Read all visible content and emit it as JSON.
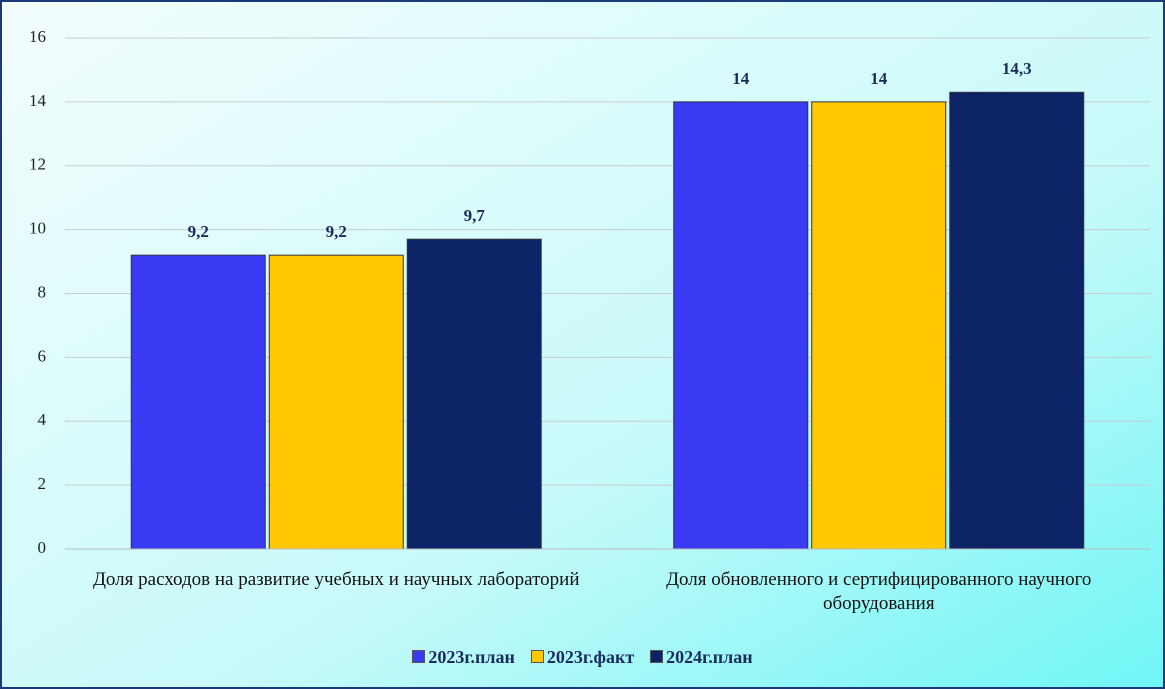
{
  "chart_data": {
    "type": "bar",
    "categories": [
      "Доля расходов на развитие учебных и научных лабораторий",
      "Доля обновленного и сертифицированного научного оборудования"
    ],
    "series": [
      {
        "name": "2023г.план",
        "color": "#3a3af2",
        "values": [
          9.2,
          14
        ],
        "value_labels": [
          "9,2",
          "14"
        ]
      },
      {
        "name": "2023г.факт",
        "color": "#ffc800",
        "values": [
          9.2,
          14
        ],
        "value_labels": [
          "9,2",
          "14"
        ]
      },
      {
        "name": "2024г.план",
        "color": "#0c2466",
        "values": [
          9.7,
          14.3
        ],
        "value_labels": [
          "9,7",
          "14,3"
        ]
      }
    ],
    "ylim": [
      0,
      16
    ],
    "yticks": [
      0,
      2,
      4,
      6,
      8,
      10,
      12,
      14,
      16
    ],
    "grid": true,
    "legend": "bottom"
  }
}
